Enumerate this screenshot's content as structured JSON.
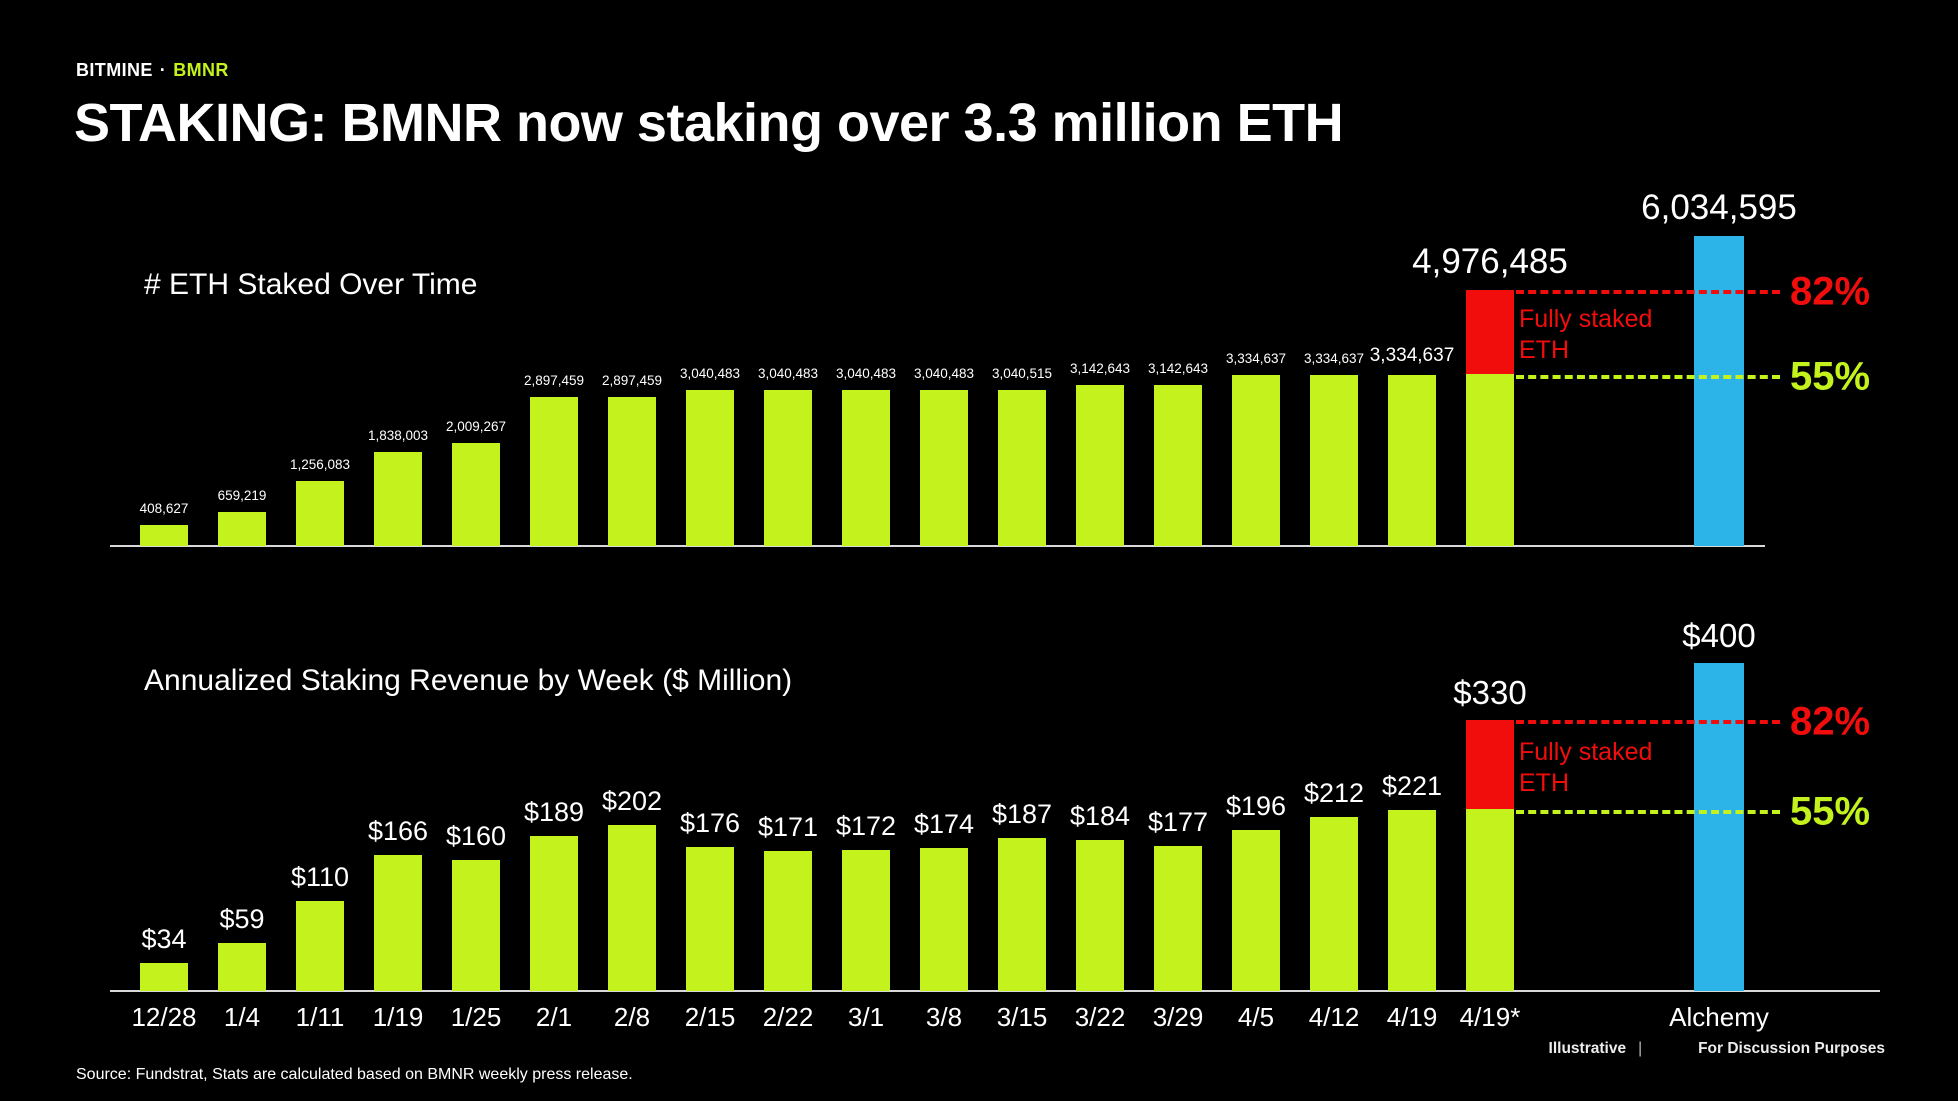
{
  "kicker": {
    "brand": "BITMINE",
    "separator": "·",
    "ticker": "BMNR"
  },
  "title": "STAKING: BMNR now staking over 3.3 million ETH",
  "colors": {
    "green": "#c3f21c",
    "blue": "#2cb3e8",
    "red": "#f20d0d",
    "white": "#ffffff",
    "background": "#000000",
    "axis": "#d8d8d8"
  },
  "x_labels": [
    "12/28",
    "1/4",
    "1/11",
    "1/19",
    "1/25",
    "2/1",
    "2/8",
    "2/15",
    "2/22",
    "3/1",
    "3/8",
    "3/15",
    "3/22",
    "3/29",
    "4/5",
    "4/12",
    "4/19",
    "4/19*",
    "Alchemy"
  ],
  "footer": {
    "illustrative": "Illustrative",
    "divider": "|",
    "purpose": "For Discussion Purposes",
    "source": "Source: Fundstrat, Stats are calculated based on BMNR weekly press release."
  },
  "chart_data": [
    {
      "type": "bar",
      "title": "# ETH Staked Over Time",
      "categories": [
        "12/28",
        "1/4",
        "1/11",
        "1/19",
        "1/25",
        "2/1",
        "2/8",
        "2/15",
        "2/22",
        "3/1",
        "3/8",
        "3/15",
        "3/22",
        "3/29",
        "4/5",
        "4/12",
        "4/19",
        "4/19*",
        "Alchemy"
      ],
      "values": [
        408627,
        659219,
        1256083,
        1838003,
        2009267,
        2897459,
        2897459,
        3040483,
        3040483,
        3040483,
        3040483,
        3040515,
        3142643,
        3142643,
        3334637,
        3334637,
        3334637,
        4976485,
        6034595
      ],
      "labels": [
        "408,627",
        "659,219",
        "1,256,083",
        "1,838,003",
        "2,009,267",
        "2,897,459",
        "2,897,459",
        "3,040,483",
        "3,040,483",
        "3,040,483",
        "3,040,483",
        "3,040,515",
        "3,142,643",
        "3,142,643",
        "3,334,637",
        "3,334,637",
        "3,334,637",
        "4,976,485",
        "6,034,595"
      ],
      "bar_styles": [
        "green",
        "green",
        "green",
        "green",
        "green",
        "green",
        "green",
        "green",
        "green",
        "green",
        "green",
        "green",
        "green",
        "green",
        "green",
        "green",
        "green",
        "stacked",
        "blue"
      ],
      "label_sizes": [
        "s",
        "s",
        "s",
        "s",
        "s",
        "s",
        "s",
        "s",
        "s",
        "s",
        "s",
        "s",
        "s",
        "s",
        "s",
        "s",
        "m",
        "xl",
        "xl"
      ],
      "stack_base": 3334637,
      "ylim": [
        0,
        6034595
      ],
      "grid": false,
      "legend": "none",
      "annotations": {
        "pct_top": "82%",
        "pct_top_value": 4976485,
        "pct_bottom": "55%",
        "pct_bottom_value": 3334637,
        "note": "Fully staked ETH"
      }
    },
    {
      "type": "bar",
      "title": "Annualized Staking Revenue by Week ($ Million)",
      "categories": [
        "12/28",
        "1/4",
        "1/11",
        "1/19",
        "1/25",
        "2/1",
        "2/8",
        "2/15",
        "2/22",
        "3/1",
        "3/8",
        "3/15",
        "3/22",
        "3/29",
        "4/5",
        "4/12",
        "4/19",
        "4/19*",
        "Alchemy"
      ],
      "values": [
        34,
        59,
        110,
        166,
        160,
        189,
        202,
        176,
        171,
        172,
        174,
        187,
        184,
        177,
        196,
        212,
        221,
        330,
        400
      ],
      "labels": [
        "$34",
        "$59",
        "$110",
        "$166",
        "$160",
        "$189",
        "$202",
        "$176",
        "$171",
        "$172",
        "$174",
        "$187",
        "$184",
        "$177",
        "$196",
        "$212",
        "$221",
        "$330",
        "$400"
      ],
      "bar_styles": [
        "green",
        "green",
        "green",
        "green",
        "green",
        "green",
        "green",
        "green",
        "green",
        "green",
        "green",
        "green",
        "green",
        "green",
        "green",
        "green",
        "green",
        "stacked",
        "blue"
      ],
      "label_sizes": [
        "d",
        "d",
        "d",
        "d",
        "d",
        "d",
        "d",
        "d",
        "d",
        "d",
        "d",
        "d",
        "d",
        "d",
        "d",
        "d",
        "d",
        "l",
        "l"
      ],
      "stack_base": 221,
      "ylim": [
        0,
        400
      ],
      "grid": false,
      "legend": "none",
      "annotations": {
        "pct_top": "82%",
        "pct_top_value": 330,
        "pct_bottom": "55%",
        "pct_bottom_value": 221,
        "note": "Fully staked ETH"
      }
    }
  ]
}
